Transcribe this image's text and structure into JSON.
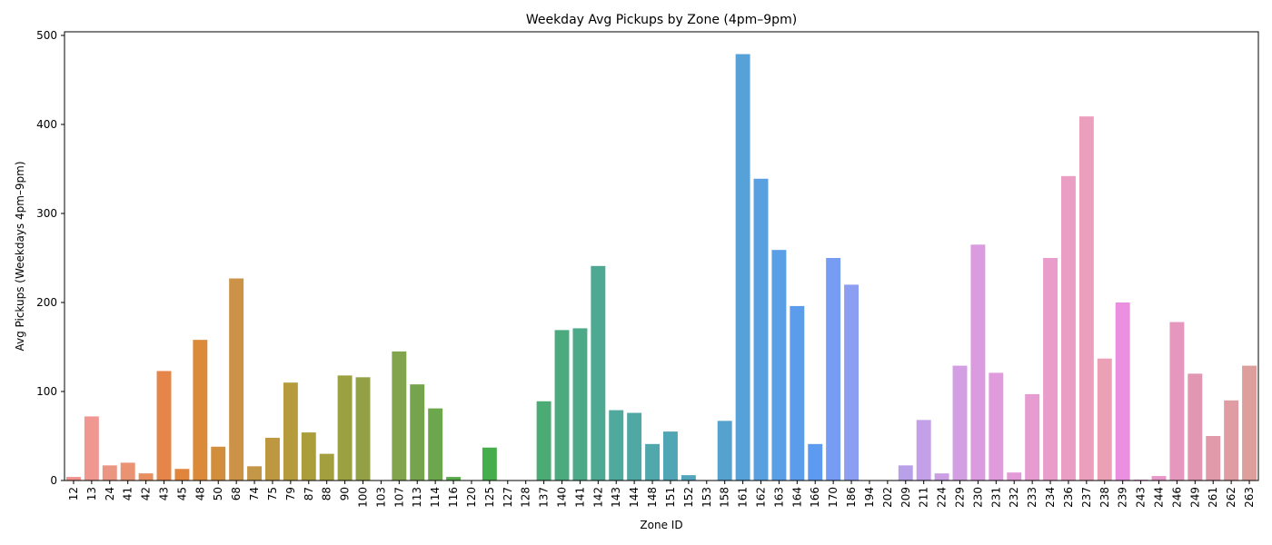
{
  "chart_data": {
    "type": "bar",
    "title": "Weekday Avg Pickups by Zone (4pm–9pm)",
    "xlabel": "Zone ID",
    "ylabel": "Avg Pickups (Weekdays 4pm–9pm)",
    "ylim": [
      0,
      500
    ],
    "yticks": [
      0,
      100,
      200,
      300,
      400,
      500
    ],
    "grid": false,
    "categories": [
      "12",
      "13",
      "24",
      "41",
      "42",
      "43",
      "45",
      "48",
      "50",
      "68",
      "74",
      "75",
      "79",
      "87",
      "88",
      "90",
      "100",
      "103",
      "107",
      "113",
      "114",
      "116",
      "120",
      "125",
      "127",
      "128",
      "137",
      "140",
      "141",
      "142",
      "143",
      "144",
      "148",
      "151",
      "152",
      "153",
      "158",
      "161",
      "162",
      "163",
      "164",
      "166",
      "170",
      "186",
      "194",
      "202",
      "209",
      "211",
      "224",
      "229",
      "230",
      "231",
      "232",
      "233",
      "234",
      "236",
      "237",
      "238",
      "239",
      "243",
      "244",
      "246",
      "249",
      "261",
      "262",
      "263"
    ],
    "values": [
      4,
      72,
      17,
      20,
      8,
      123,
      13,
      158,
      38,
      227,
      16,
      48,
      110,
      54,
      30,
      118,
      116,
      0.5,
      145,
      108,
      81,
      4,
      0.5,
      37,
      0.5,
      0.5,
      89,
      169,
      171,
      241,
      79,
      76,
      41,
      55,
      6,
      0.5,
      67,
      479,
      339,
      259,
      196,
      41,
      250,
      220,
      0.5,
      0.5,
      17,
      68,
      8,
      129,
      265,
      121,
      9,
      97,
      250,
      342,
      409,
      137,
      200,
      1,
      5,
      178,
      120,
      50,
      90,
      129
    ],
    "colors": [
      "#f2928e",
      "#ef9790",
      "#eb9683",
      "#e99372",
      "#e78f5e",
      "#e6854a",
      "#e0853b",
      "#da8a38",
      "#d18e3c",
      "#cc9248",
      "#c49647",
      "#bd9841",
      "#b69b3c",
      "#ac9d3b",
      "#a39f3e",
      "#9ba041",
      "#93a045",
      "#8aa24a",
      "#82a44e",
      "#76a44c",
      "#6ca74d",
      "#58a949",
      "#4aad45",
      "#45ad4b",
      "#47ad59",
      "#4aac67",
      "#4bab74",
      "#4caa7f",
      "#4daa89",
      "#4ea993",
      "#4fa99c",
      "#50a8a4",
      "#50a7ac",
      "#51a6b5",
      "#52a5bd",
      "#53a4c6",
      "#55a2cf",
      "#56a1d8",
      "#58a0e0",
      "#5a9ee6",
      "#5b9deb",
      "#5d9bf0",
      "#779cf3",
      "#8c9ef1",
      "#9ea0ef",
      "#ada1ec",
      "#b9a1ea",
      "#c3a0e8",
      "#cc9fe5",
      "#d49ee2",
      "#da9cdf",
      "#df9bdc",
      "#e39bd7",
      "#e69cd1",
      "#e89dcb",
      "#ea9ec4",
      "#eb9fbd",
      "#eba0b6",
      "#eb8fe1",
      "#e794d6",
      "#e797c8",
      "#e597bd",
      "#e196b1",
      "#e09aa9",
      "#df9ca2",
      "#dd9e9c"
    ]
  }
}
